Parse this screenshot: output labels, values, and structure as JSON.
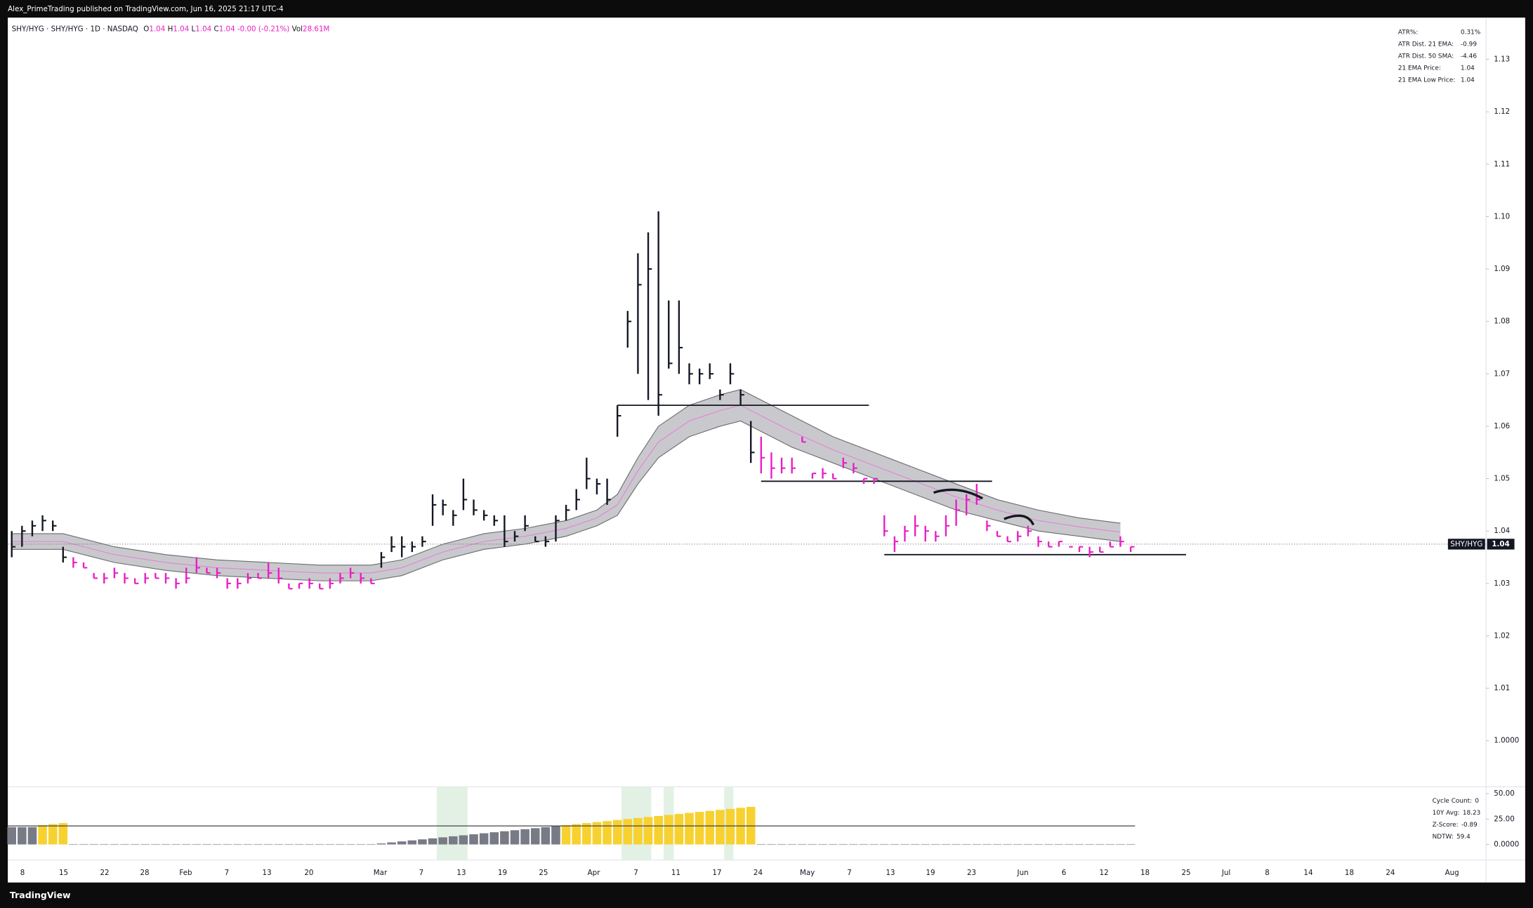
{
  "header": {
    "publisher": "Alex_PrimeTrading published on TradingView.com, Jun 16, 2025 21:17 UTC-4"
  },
  "footer": {
    "brand": "TradingView"
  },
  "chart_data": [
    {
      "type": "ohlc",
      "title": "SHY/HYG · SHY/HYG · 1D · NASDAQ",
      "legend": {
        "open_label": "O",
        "open": "1.04",
        "high_label": "H",
        "high": "1.04",
        "low_label": "L",
        "low": "1.04",
        "close_label": "C",
        "close": "1.04",
        "change": "-0.00 (-0.21%)",
        "volume_label": "Vol",
        "volume": "28.61M"
      },
      "high": [
        1.04,
        1.041,
        1.042,
        1.043,
        1.042,
        1.037,
        1.035,
        1.034,
        1.032,
        1.032,
        1.033,
        1.032,
        1.031,
        1.032,
        1.032,
        1.032,
        1.031,
        1.033,
        1.035,
        1.033,
        1.033,
        1.031,
        1.031,
        1.032,
        1.032,
        1.034,
        1.033,
        1.03,
        1.03,
        1.031,
        1.03,
        1.031,
        1.032,
        1.033,
        1.032,
        1.031,
        1.036,
        1.039,
        1.039,
        1.038,
        1.039,
        1.047,
        1.046,
        1.044,
        1.05,
        1.046,
        1.044,
        1.043,
        1.043,
        1.04,
        1.043,
        1.039,
        1.039,
        1.043,
        1.045,
        1.048,
        1.054,
        1.05,
        1.05,
        1.064,
        1.082,
        1.093,
        1.097,
        1.101,
        1.084,
        1.084,
        1.072,
        1.071,
        1.072,
        1.067,
        1.072,
        1.067,
        1.061,
        1.058,
        1.055,
        1.054,
        1.054,
        1.058,
        1.051,
        1.052,
        1.051,
        1.054,
        1.053,
        1.05,
        1.05,
        1.043,
        1.039,
        1.041,
        1.043,
        1.041,
        1.04,
        1.043,
        1.046,
        1.047,
        1.049,
        1.042,
        1.04,
        1.039,
        1.04,
        1.041,
        1.039,
        1.038,
        1.038,
        1.037,
        1.037,
        1.037,
        1.037,
        1.038,
        1.039,
        1.037
      ],
      "low": [
        1.035,
        1.037,
        1.039,
        1.04,
        1.04,
        1.034,
        1.033,
        1.033,
        1.031,
        1.03,
        1.031,
        1.03,
        1.03,
        1.03,
        1.031,
        1.03,
        1.029,
        1.03,
        1.032,
        1.032,
        1.031,
        1.029,
        1.029,
        1.03,
        1.031,
        1.031,
        1.03,
        1.029,
        1.029,
        1.029,
        1.029,
        1.029,
        1.03,
        1.031,
        1.03,
        1.03,
        1.033,
        1.036,
        1.035,
        1.036,
        1.037,
        1.041,
        1.043,
        1.041,
        1.044,
        1.043,
        1.042,
        1.041,
        1.037,
        1.038,
        1.04,
        1.038,
        1.037,
        1.038,
        1.042,
        1.044,
        1.048,
        1.047,
        1.045,
        1.058,
        1.075,
        1.07,
        1.065,
        1.062,
        1.071,
        1.07,
        1.068,
        1.068,
        1.069,
        1.065,
        1.068,
        1.064,
        1.053,
        1.051,
        1.05,
        1.051,
        1.051,
        1.057,
        1.05,
        1.05,
        1.05,
        1.052,
        1.051,
        1.049,
        1.049,
        1.039,
        1.036,
        1.038,
        1.039,
        1.038,
        1.038,
        1.039,
        1.041,
        1.043,
        1.045,
        1.04,
        1.039,
        1.038,
        1.038,
        1.039,
        1.037,
        1.037,
        1.037,
        1.037,
        1.036,
        1.035,
        1.036,
        1.037,
        1.037,
        1.036
      ],
      "close": [
        1.037,
        1.04,
        1.041,
        1.042,
        1.041,
        1.035,
        1.034,
        1.033,
        1.031,
        1.031,
        1.032,
        1.031,
        1.03,
        1.031,
        1.031,
        1.031,
        1.03,
        1.031,
        1.033,
        1.032,
        1.032,
        1.03,
        1.03,
        1.031,
        1.031,
        1.032,
        1.031,
        1.029,
        1.03,
        1.03,
        1.029,
        1.03,
        1.031,
        1.032,
        1.031,
        1.03,
        1.035,
        1.037,
        1.037,
        1.037,
        1.038,
        1.045,
        1.045,
        1.043,
        1.046,
        1.044,
        1.043,
        1.042,
        1.038,
        1.039,
        1.041,
        1.038,
        1.038,
        1.042,
        1.044,
        1.046,
        1.05,
        1.049,
        1.046,
        1.062,
        1.08,
        1.087,
        1.09,
        1.066,
        1.072,
        1.075,
        1.07,
        1.07,
        1.07,
        1.066,
        1.07,
        1.066,
        1.055,
        1.054,
        1.052,
        1.052,
        1.052,
        1.057,
        1.051,
        1.051,
        1.05,
        1.053,
        1.052,
        1.05,
        1.05,
        1.04,
        1.038,
        1.04,
        1.041,
        1.04,
        1.039,
        1.041,
        1.044,
        1.046,
        1.046,
        1.041,
        1.039,
        1.038,
        1.039,
        1.04,
        1.038,
        1.037,
        1.038,
        1.037,
        1.037,
        1.036,
        1.036,
        1.037,
        1.038,
        1.037
      ],
      "colors": [
        "#131722",
        "#131722",
        "#131722",
        "#131722",
        "#131722",
        "#131722",
        "#e91ec4",
        "#e91ec4",
        "#e91ec4",
        "#e91ec4",
        "#e91ec4",
        "#e91ec4",
        "#e91ec4",
        "#e91ec4",
        "#e91ec4",
        "#e91ec4",
        "#e91ec4",
        "#e91ec4",
        "#e91ec4",
        "#e91ec4",
        "#e91ec4",
        "#e91ec4",
        "#e91ec4",
        "#e91ec4",
        "#e91ec4",
        "#e91ec4",
        "#e91ec4",
        "#e91ec4",
        "#e91ec4",
        "#e91ec4",
        "#e91ec4",
        "#e91ec4",
        "#e91ec4",
        "#e91ec4",
        "#e91ec4",
        "#e91ec4",
        "#131722",
        "#131722",
        "#131722",
        "#131722",
        "#131722",
        "#131722",
        "#131722",
        "#131722",
        "#131722",
        "#131722",
        "#131722",
        "#131722",
        "#131722",
        "#131722",
        "#131722",
        "#131722",
        "#131722",
        "#131722",
        "#131722",
        "#131722",
        "#131722",
        "#131722",
        "#131722",
        "#131722",
        "#131722",
        "#131722",
        "#131722",
        "#131722",
        "#131722",
        "#131722",
        "#131722",
        "#131722",
        "#131722",
        "#131722",
        "#131722",
        "#131722",
        "#131722",
        "#e91ec4",
        "#e91ec4",
        "#e91ec4",
        "#e91ec4",
        "#e91ec4",
        "#e91ec4",
        "#e91ec4",
        "#e91ec4",
        "#e91ec4",
        "#e91ec4",
        "#e91ec4",
        "#e91ec4",
        "#e91ec4",
        "#e91ec4",
        "#e91ec4",
        "#e91ec4",
        "#e91ec4",
        "#e91ec4",
        "#e91ec4",
        "#e91ec4",
        "#e91ec4",
        "#e91ec4",
        "#e91ec4",
        "#e91ec4",
        "#e91ec4",
        "#e91ec4",
        "#e91ec4",
        "#e91ec4",
        "#e91ec4",
        "#e91ec4",
        "#e91ec4",
        "#e91ec4",
        "#e91ec4",
        "#e91ec4",
        "#e91ec4",
        "#e91ec4",
        "#e91ec4"
      ],
      "band": {
        "x": [
          0,
          5,
          10,
          15,
          20,
          25,
          30,
          35,
          38,
          42,
          46,
          50,
          54,
          57,
          59,
          61,
          63,
          66,
          69,
          71,
          73,
          76,
          80,
          84,
          88,
          92,
          96,
          100,
          104,
          108
        ],
        "upper": [
          1.0395,
          1.0395,
          1.037,
          1.0355,
          1.0345,
          1.034,
          1.0335,
          1.0335,
          1.0345,
          1.0375,
          1.0395,
          1.0405,
          1.042,
          1.044,
          1.047,
          1.054,
          1.06,
          1.064,
          1.066,
          1.067,
          1.065,
          1.062,
          1.058,
          1.055,
          1.052,
          1.049,
          1.046,
          1.044,
          1.0425,
          1.0415
        ],
        "lower": [
          1.0365,
          1.0365,
          1.034,
          1.0325,
          1.0315,
          1.031,
          1.0305,
          1.0305,
          1.0315,
          1.0345,
          1.0365,
          1.0375,
          1.039,
          1.041,
          1.043,
          1.049,
          1.054,
          1.058,
          1.06,
          1.061,
          1.059,
          1.056,
          1.053,
          1.05,
          1.047,
          1.044,
          1.042,
          1.04,
          1.039,
          1.038
        ],
        "ema": [
          1.038,
          1.038,
          1.0355,
          1.034,
          1.033,
          1.0325,
          1.032,
          1.032,
          1.033,
          1.036,
          1.038,
          1.039,
          1.0405,
          1.0425,
          1.045,
          1.0515,
          1.057,
          1.061,
          1.063,
          1.064,
          1.062,
          1.059,
          1.0555,
          1.0525,
          1.0495,
          1.0465,
          1.044,
          1.042,
          1.0408,
          1.0398
        ],
        "fill_color": "#c9c9cd",
        "edge_color": "#6a6a70",
        "ema_color": "#e08ad6"
      },
      "levels": [
        {
          "value": 1.064,
          "from": 59,
          "to": 83.5
        },
        {
          "value": 1.0495,
          "from": 73,
          "to": 95.5
        },
        {
          "value": 1.0355,
          "from": 85,
          "to": 114.4
        }
      ],
      "last_price": {
        "name": "SHY/HYG",
        "value": 1.0375,
        "label": "1.04"
      },
      "info_table": [
        {
          "label": "ATR%:",
          "value": "0.31%"
        },
        {
          "label": "ATR Dist. 21 EMA:",
          "value": "-0.99"
        },
        {
          "label": "ATR Dist. 50 SMA:",
          "value": "-4.46"
        },
        {
          "label": "21 EMA Price:",
          "value": "1.04"
        },
        {
          "label": "21 EMA Low Price:",
          "value": "1.04"
        }
      ],
      "xlim": [
        -0.381,
        143.62
      ],
      "xticks": [
        {
          "value": 1.05,
          "label": "8"
        },
        {
          "value": 5.05,
          "label": "15"
        },
        {
          "value": 9.05,
          "label": "22"
        },
        {
          "value": 12.95,
          "label": "28"
        },
        {
          "value": 16.95,
          "label": "Feb"
        },
        {
          "value": 20.95,
          "label": "7"
        },
        {
          "value": 24.86,
          "label": "13"
        },
        {
          "value": 28.95,
          "label": "20"
        },
        {
          "value": 35.9,
          "label": "Mar"
        },
        {
          "value": 39.9,
          "label": "7"
        },
        {
          "value": 43.8,
          "label": "13"
        },
        {
          "value": 47.8,
          "label": "19"
        },
        {
          "value": 51.8,
          "label": "25"
        },
        {
          "value": 56.7,
          "label": "Apr"
        },
        {
          "value": 60.8,
          "label": "7"
        },
        {
          "value": 64.7,
          "label": "11"
        },
        {
          "value": 68.7,
          "label": "17"
        },
        {
          "value": 72.7,
          "label": "24"
        },
        {
          "value": 77.5,
          "label": "May"
        },
        {
          "value": 81.6,
          "label": "7"
        },
        {
          "value": 85.6,
          "label": "13"
        },
        {
          "value": 89.5,
          "label": "19"
        },
        {
          "value": 93.5,
          "label": "23"
        },
        {
          "value": 98.5,
          "label": "Jun"
        },
        {
          "value": 102.5,
          "label": "6"
        },
        {
          "value": 106.4,
          "label": "12"
        },
        {
          "value": 110.4,
          "label": "18"
        },
        {
          "value": 114.4,
          "label": "25"
        },
        {
          "value": 118.3,
          "label": "Jul"
        },
        {
          "value": 122.3,
          "label": "8"
        },
        {
          "value": 126.3,
          "label": "14"
        },
        {
          "value": 130.3,
          "label": "18"
        },
        {
          "value": 134.3,
          "label": "24"
        },
        {
          "value": 140.3,
          "label": "Aug"
        }
      ],
      "ylim": [
        0.9912,
        1.1376
      ],
      "yticks": [
        1.13,
        1.12,
        1.11,
        {
          "value": 1.1,
          "label": "1.10"
        },
        1.09,
        1.08,
        1.07,
        1.06,
        1.05,
        1.04,
        1.03,
        1.02,
        1.01,
        {
          "value": 1.0,
          "label": "1.0000"
        }
      ]
    },
    {
      "type": "column",
      "values": [
        17,
        17,
        17,
        19,
        20,
        21,
        0,
        0,
        0,
        0,
        0,
        0,
        0,
        0,
        0,
        0,
        0,
        0,
        0,
        0,
        0,
        0,
        0,
        0,
        0,
        0,
        0,
        0,
        0,
        0,
        0,
        0,
        0,
        0,
        0,
        0,
        1,
        2,
        3,
        4,
        5,
        6,
        7,
        8,
        9,
        10,
        11,
        12,
        13,
        14,
        15,
        16,
        17,
        18,
        19,
        20,
        21,
        22,
        23,
        24,
        25,
        26,
        27,
        28,
        29,
        30,
        31,
        32,
        33,
        34,
        35,
        36,
        37,
        0,
        0,
        0,
        0,
        0,
        0,
        0,
        0,
        0,
        0,
        0,
        0,
        0,
        0,
        0,
        0,
        0,
        0,
        0,
        0,
        0,
        0,
        0,
        0,
        0,
        0,
        0,
        0,
        0,
        0,
        0,
        0,
        0,
        0,
        0,
        0,
        0
      ],
      "average": 18.23,
      "color_above": "#f7d130",
      "color_below": "#787b86",
      "zero_color": "#b2b5be",
      "highlights": [
        [
          41.4,
          44.4
        ],
        [
          59.4,
          62.3
        ],
        [
          63.5,
          64.5
        ],
        [
          69.4,
          70.3
        ]
      ],
      "highlight_color": "#e3f1e4",
      "info_table": [
        {
          "label": "Cycle Count:",
          "value": "0"
        },
        {
          "label": "10Y Avg:",
          "value": "18.23"
        },
        {
          "label": "Z-Score:",
          "value": "-0.89"
        },
        {
          "label": "NDTW:",
          "value": "59.4"
        }
      ],
      "xlim": [
        -0.381,
        143.62
      ],
      "ylim": [
        -15.4,
        56.7
      ],
      "yticks": [
        {
          "value": 50,
          "label": "50.00"
        },
        {
          "value": 25,
          "label": "25.00"
        },
        {
          "value": 0,
          "label": "0.0000"
        }
      ]
    }
  ]
}
